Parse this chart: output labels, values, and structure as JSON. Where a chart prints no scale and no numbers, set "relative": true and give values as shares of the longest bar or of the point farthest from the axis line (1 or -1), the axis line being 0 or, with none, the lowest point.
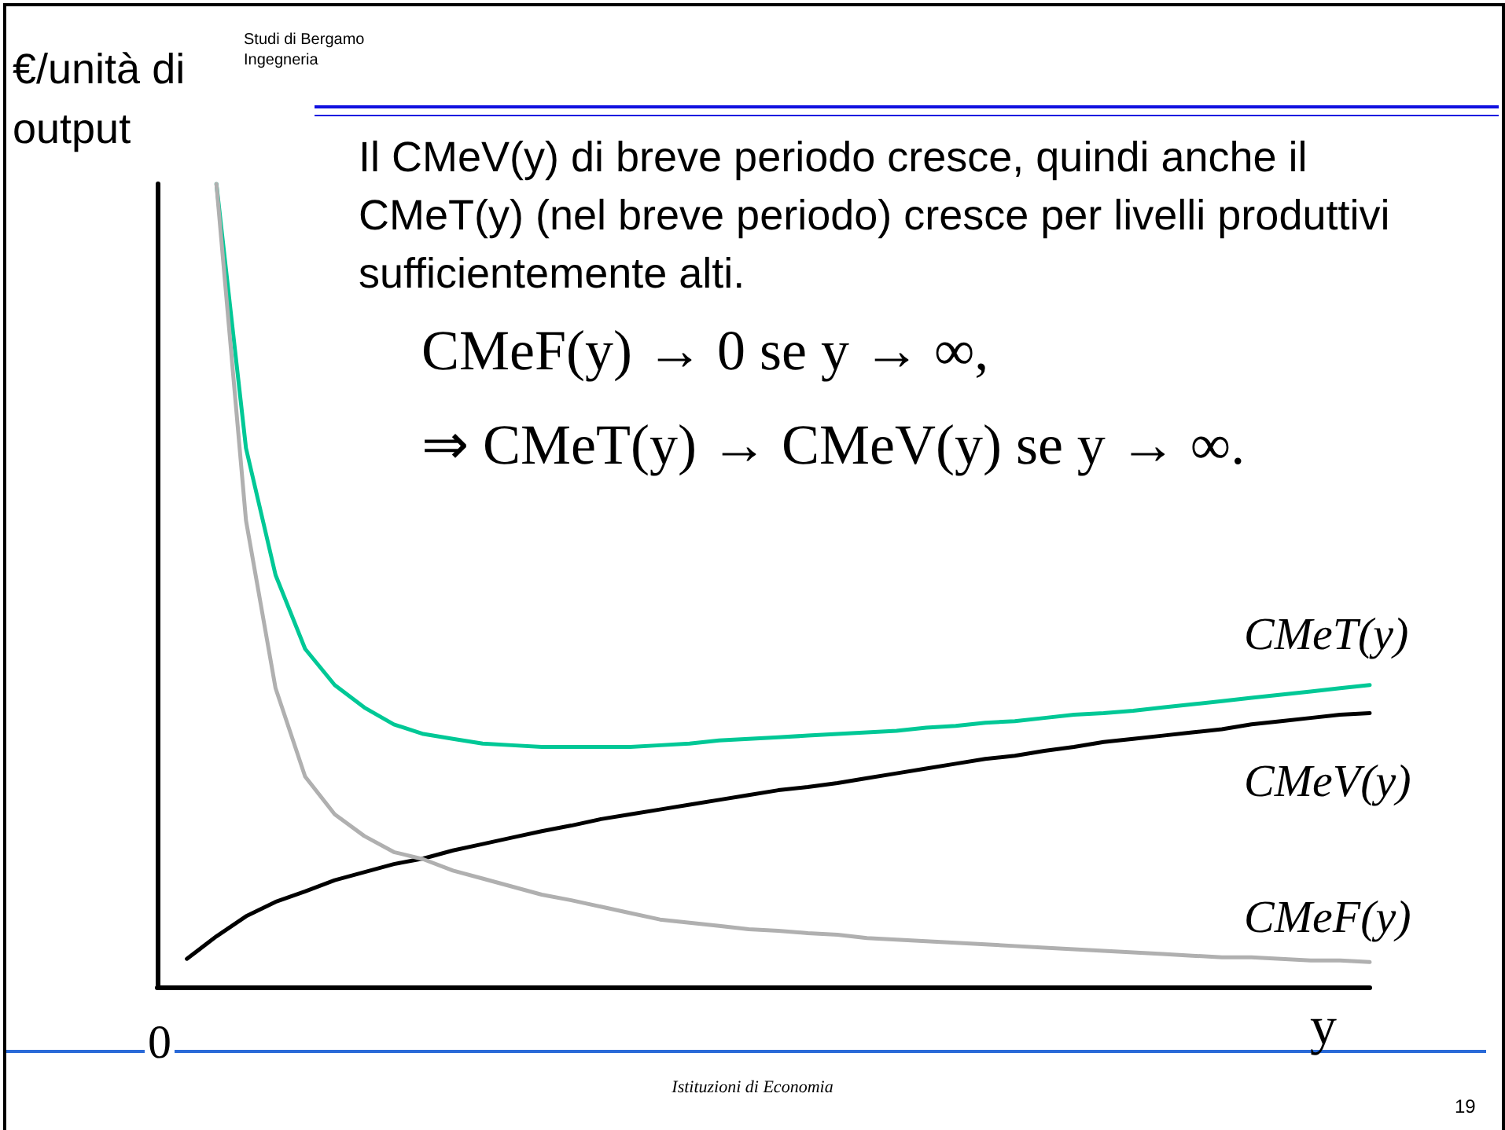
{
  "chart_data": {
    "type": "line",
    "relative": true,
    "ylabel": "€/unità di output",
    "xlabel": "y",
    "categories": [
      null,
      null,
      null,
      null,
      null,
      null,
      null,
      null,
      null,
      null,
      null,
      null,
      null,
      null,
      null,
      null,
      null,
      null,
      null,
      null,
      null,
      null,
      null,
      null,
      null,
      null,
      null,
      null,
      null,
      null,
      null,
      null,
      null,
      null,
      null,
      null,
      null,
      null,
      null,
      null,
      null,
      null
    ],
    "series": [
      {
        "name": "CMeT(y)",
        "color": "#00c896",
        "values": [
          null,
          null,
          1.0,
          0.671,
          0.513,
          0.421,
          0.376,
          0.348,
          0.327,
          0.315,
          0.309,
          0.303,
          0.301,
          0.299,
          0.299,
          0.299,
          0.299,
          0.301,
          0.303,
          0.307,
          0.309,
          0.311,
          0.313,
          0.315,
          0.317,
          0.319,
          0.323,
          0.325,
          0.329,
          0.331,
          0.335,
          0.339,
          0.341,
          0.344,
          0.348,
          0.352,
          0.356,
          0.36,
          0.364,
          0.368,
          0.372,
          0.376
        ]
      },
      {
        "name": "CMeV(y)",
        "color": "#000000",
        "values": [
          null,
          0.035,
          0.063,
          0.088,
          0.106,
          0.119,
          0.133,
          0.143,
          0.153,
          0.16,
          0.17,
          0.178,
          0.186,
          0.194,
          0.201,
          0.209,
          0.215,
          0.221,
          0.227,
          0.233,
          0.239,
          0.245,
          0.249,
          0.254,
          0.26,
          0.266,
          0.272,
          0.278,
          0.284,
          0.288,
          0.294,
          0.299,
          0.305,
          0.309,
          0.313,
          0.317,
          0.321,
          0.327,
          0.331,
          0.335,
          0.339,
          0.341
        ]
      },
      {
        "name": "CMeF(y)",
        "color": "#b0b0b0",
        "values": [
          null,
          null,
          1.0,
          0.581,
          0.372,
          0.262,
          0.215,
          0.188,
          0.168,
          0.159,
          0.145,
          0.135,
          0.125,
          0.115,
          0.108,
          0.1,
          0.092,
          0.084,
          0.08,
          0.076,
          0.072,
          0.07,
          0.067,
          0.065,
          0.061,
          0.059,
          0.057,
          0.055,
          0.053,
          0.051,
          0.049,
          0.047,
          0.045,
          0.043,
          0.041,
          0.039,
          0.037,
          0.037,
          0.035,
          0.033,
          0.033,
          0.031
        ]
      }
    ],
    "annotations": [
      "Studi di Bergamo",
      "Ingegneria",
      "Il CMeV(y) di breve periodo cresce, quindi anche il CMeT(y) (nel breve periodo) cresce per livelli produttivi sufficientemente alti.",
      "CMeF(y) → 0 se y → ∞,",
      "⇒ CMeT(y) → CMeV(y) se y → ∞.",
      "Istituzioni di Economia",
      "19",
      "0"
    ],
    "legend": false,
    "grid": false,
    "marker": "none",
    "line_style": "solid"
  }
}
